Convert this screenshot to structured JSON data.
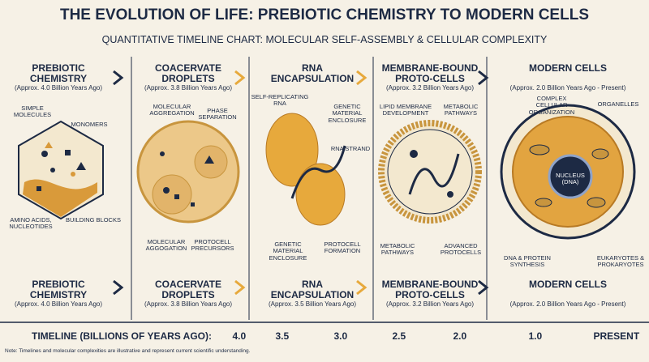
{
  "header": {
    "title": "THE EVOLUTION OF LIFE: PREBIOTIC CHEMISTRY TO MODERN CELLS",
    "subtitle": "QUANTITATIVE TIMELINE CHART: MOLECULAR SELF-ASSEMBLY & CELLULAR COMPLEXITY"
  },
  "stages": [
    {
      "title": "PREBIOTIC CHEMISTRY",
      "date": "(Approx. 4.0 Billion Years Ago)",
      "labels": [
        "SIMPLE MOLECULES",
        "MONOMERS",
        "AMINO ACIDS, NUCLEOTIDES",
        "BUILDING BLOCKS"
      ]
    },
    {
      "title": "COACERVATE DROPLETS",
      "date": "(Approx. 3.8 Billion Years Ago)",
      "labels": [
        "MOLECULAR AGGREGATION",
        "PHASE SEPARATION",
        "MOLECULAR AGGOGATION",
        "PROTOCELL PRECURSORS"
      ]
    },
    {
      "title": "RNA ENCAPSULATION",
      "labels": [
        "SELF-REPLICATING RNA",
        "GENETIC MATERIAL ENCLOSURE",
        "RNA STRAND",
        "GENETIC MATERIAL ENCLOSURE",
        "PROTOCELL FORMATION"
      ]
    },
    {
      "title": "MEMBRANE-BOUND PROTO-CELLS",
      "date": "(Approx. 3.2 Billion Years Ago)",
      "labels": [
        "LIPID MEMBRANE DEVELOPMENT",
        "METABOLIC PATHWAYS",
        "METABOLIC PATHWAYS",
        "ADVANCED PROTOCELLS"
      ]
    },
    {
      "title": "MODERN CELLS",
      "date": "(Approx. 2.0 Billion Years Ago - Present)",
      "labels": [
        "COMPLEX CELLULAR ORGANIZATION",
        "ORGANELLES",
        "NUCLEUS (DNA)",
        "DNA & PROTEIN SYNTHESIS",
        "EUKARYOTES & PROKARYOTES"
      ]
    }
  ],
  "bottom_stages": [
    {
      "title": "PREBIOTIC CHEMISTRY",
      "date": "(Approx. 4.0 Billion Years Ago)"
    },
    {
      "title": "COACERVATE DROPLETS",
      "date": "(Approx. 3.8 Billion Years Ago)"
    },
    {
      "title": "RNA ENCAPSULATION",
      "date": "(Approx. 3.5 Billion Years Ago)"
    },
    {
      "title": "MEMBRANE-BOUND PROTO-CELLS",
      "date": "(Approx. 3.2 Billion Years Ago)"
    },
    {
      "title": "MODERN CELLS",
      "date": "(Approx. 2.0 Billion Years Ago - Present)"
    }
  ],
  "timeline": {
    "label": "TIMELINE (BILLIONS OF YEARS AGO):",
    "ticks": [
      "4.0",
      "3.5",
      "3.0",
      "2.5",
      "2.0",
      "1.0",
      "PRESENT"
    ]
  },
  "note": "Note: Timelines and molecular complexities are illustrative and represent current scientific understanding."
}
